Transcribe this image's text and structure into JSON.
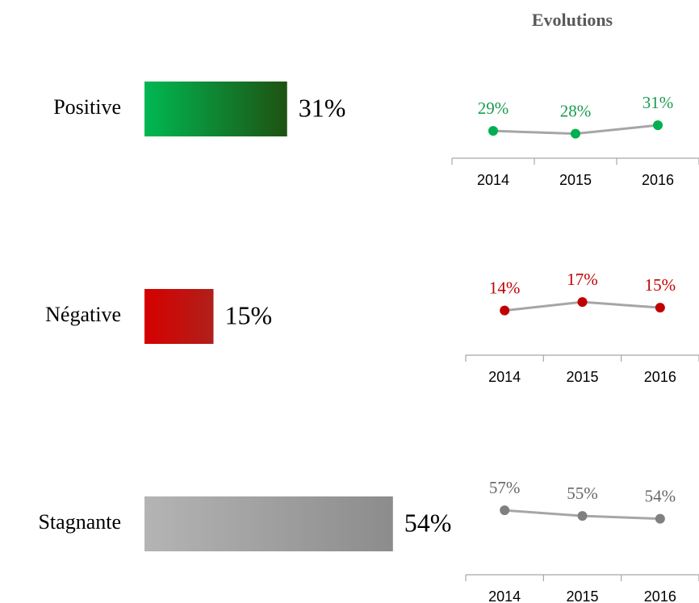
{
  "title": "Evolutions",
  "chart_data": [
    {
      "type": "hbar",
      "categories": [
        "Positive",
        "Négative",
        "Stagnante"
      ],
      "values": [
        31,
        15,
        54
      ],
      "value_labels": [
        "31%",
        "15%",
        "54%"
      ],
      "gradients": [
        [
          "#00b852",
          "#1e5212"
        ],
        [
          "#d60000",
          "#b0201a"
        ],
        [
          "#b4b4b4",
          "#8c8c8c"
        ]
      ]
    },
    {
      "type": "line",
      "x": [
        "2014",
        "2015",
        "2016"
      ],
      "values": [
        29,
        28,
        31
      ],
      "value_labels": [
        "29%",
        "28%",
        "31%"
      ],
      "color": "#00b050",
      "label_color": "#1a9a50",
      "line_color": "#a6a6a6"
    },
    {
      "type": "line",
      "x": [
        "2014",
        "2015",
        "2016"
      ],
      "values": [
        14,
        17,
        15
      ],
      "value_labels": [
        "14%",
        "17%",
        "15%"
      ],
      "color": "#c00000",
      "label_color": "#c00000",
      "line_color": "#a6a6a6"
    },
    {
      "type": "line",
      "x": [
        "2014",
        "2015",
        "2016"
      ],
      "values": [
        57,
        55,
        54
      ],
      "value_labels": [
        "57%",
        "55%",
        "54%"
      ],
      "color": "#808080",
      "label_color": "#666666",
      "line_color": "#a6a6a6"
    }
  ]
}
